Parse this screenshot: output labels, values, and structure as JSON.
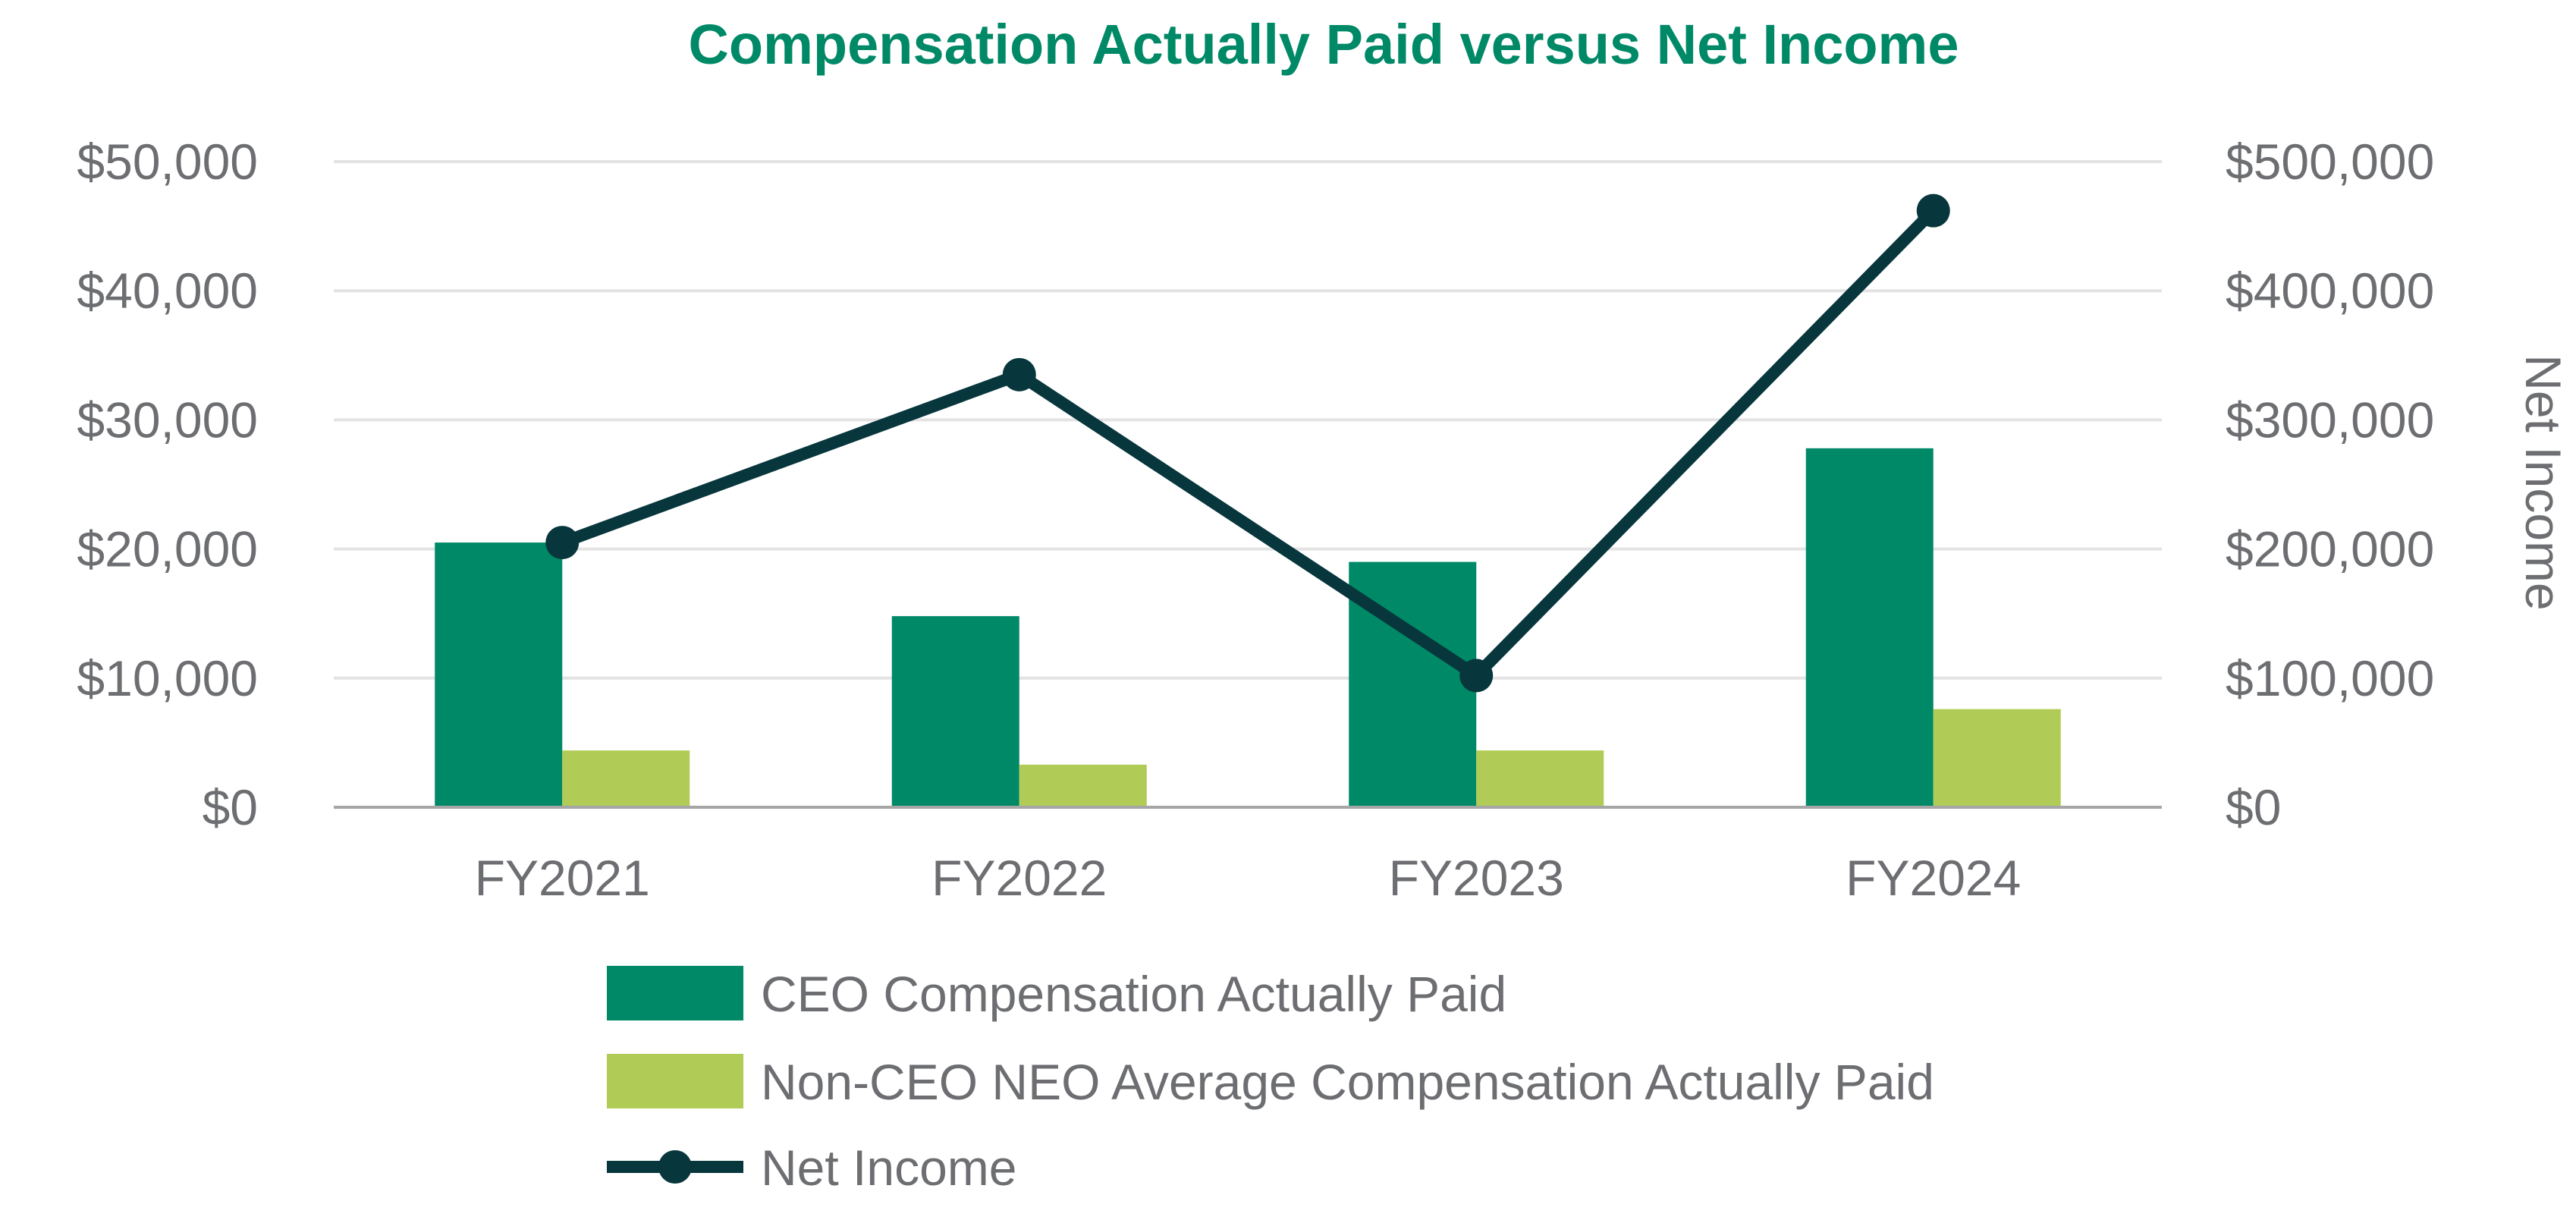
{
  "chart_data": {
    "type": "bar",
    "title": "Compensation Actually Paid versus Net Income",
    "categories": [
      "FY2021",
      "FY2022",
      "FY2023",
      "FY2024"
    ],
    "y_left": {
      "ylim": [
        0,
        50000
      ],
      "ticks": [
        0,
        10000,
        20000,
        30000,
        40000,
        50000
      ],
      "tick_labels": [
        "$0",
        "$10,000",
        "$20,000",
        "$30,000",
        "$40,000",
        "$50,000"
      ]
    },
    "y_right": {
      "label": "Net Income",
      "ylim": [
        0,
        500000
      ],
      "ticks": [
        0,
        100000,
        200000,
        300000,
        400000,
        500000
      ],
      "tick_labels": [
        "$0",
        "$100,000",
        "$200,000",
        "$300,000",
        "$400,000",
        "$500,000"
      ]
    },
    "series": [
      {
        "name": "CEO Compensation Actually Paid",
        "type": "bar",
        "axis": "left",
        "color": "#008966",
        "values": [
          20500,
          14800,
          19000,
          27800
        ]
      },
      {
        "name": "Non-CEO NEO Average Compensation Actually Paid",
        "type": "bar",
        "axis": "left",
        "color": "#b1cc56",
        "values": [
          4400,
          3300,
          4400,
          7600
        ]
      },
      {
        "name": "Net Income",
        "type": "line",
        "axis": "right",
        "color": "#07363c",
        "values": [
          205000,
          335000,
          102000,
          462000
        ]
      }
    ],
    "grid": true,
    "legend_position": "bottom"
  },
  "colors": {
    "title": "#008966",
    "text": "#6d6e71",
    "gridline": "#e3e3e3",
    "axis_line": "#a6a6a6"
  }
}
